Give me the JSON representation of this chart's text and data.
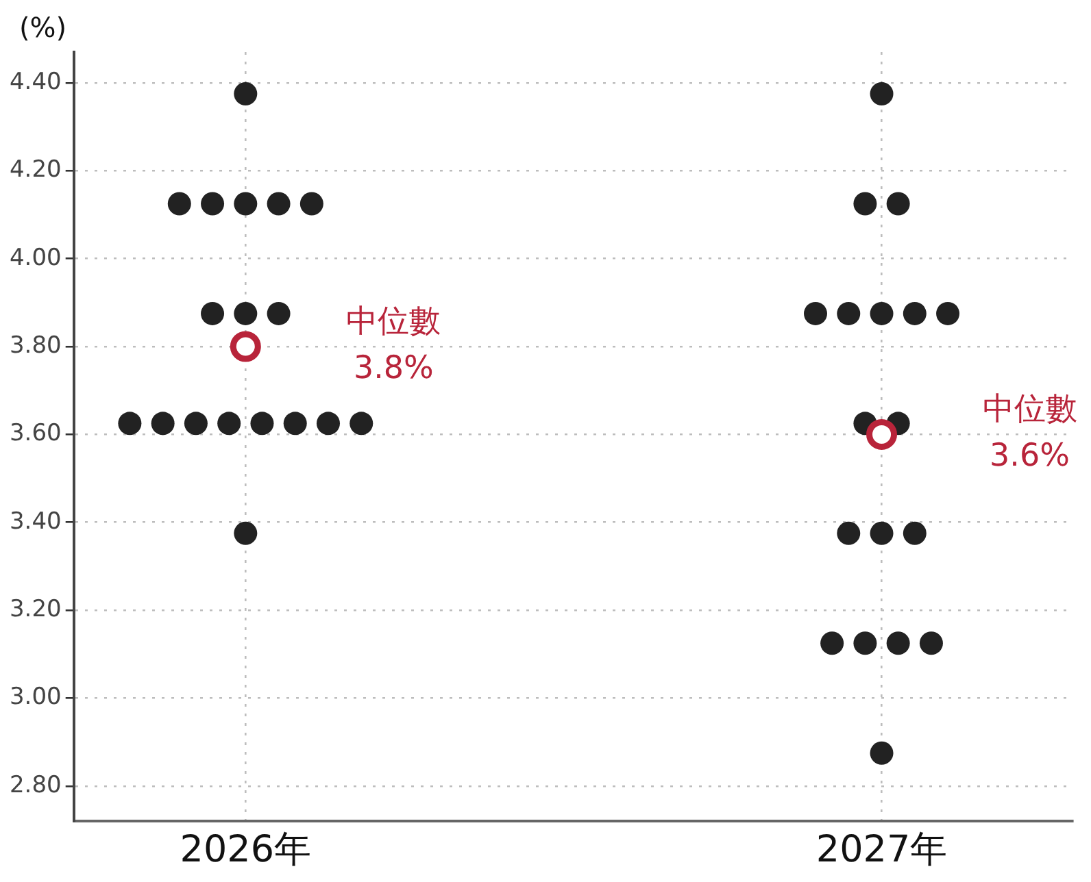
{
  "chart_data": {
    "type": "scatter",
    "ylabel": "(%)",
    "categories": [
      "2026年",
      "2027年"
    ],
    "series": [
      {
        "type": "scatter",
        "color": "#222222",
        "marker": "circle",
        "x": [
          "2026年",
          "2026年",
          "2026年",
          "2026年",
          "2026年",
          "2026年",
          "2026年",
          "2026年",
          "2026年",
          "2026年",
          "2026年",
          "2026年",
          "2026年",
          "2026年",
          "2026年",
          "2026年",
          "2026年",
          "2026年",
          "2027年",
          "2027年",
          "2027年",
          "2027年",
          "2027年",
          "2027年",
          "2027年",
          "2027年",
          "2027年",
          "2027年",
          "2027年",
          "2027年",
          "2027年",
          "2027年",
          "2027年",
          "2027年",
          "2027年",
          "2027年"
        ],
        "values": [
          4.375,
          4.125,
          4.125,
          4.125,
          4.125,
          4.125,
          3.875,
          3.875,
          3.875,
          3.625,
          3.625,
          3.625,
          3.625,
          3.625,
          3.625,
          3.625,
          3.625,
          3.375,
          4.375,
          4.125,
          4.125,
          3.875,
          3.875,
          3.875,
          3.875,
          3.875,
          3.625,
          3.625,
          3.375,
          3.375,
          3.375,
          3.125,
          3.125,
          3.125,
          3.125,
          2.875
        ]
      },
      {
        "type": "scatter",
        "color": "#b8243a",
        "marker": "circle",
        "x": [
          "2026年",
          "2027年"
        ],
        "values": [
          3.8,
          3.6
        ]
      }
    ],
    "ylim": [
      2.72,
      4.47
    ],
    "yticks": [
      {
        "value": 2.8,
        "label": "2.80"
      },
      {
        "value": 3.0,
        "label": "3.00"
      },
      {
        "value": 3.2,
        "label": "3.20"
      },
      {
        "value": 3.4,
        "label": "3.40"
      },
      {
        "value": 3.6,
        "label": "3.60"
      },
      {
        "value": 3.8,
        "label": "3.80"
      },
      {
        "value": 4.0,
        "label": "4.00"
      },
      {
        "value": 4.2,
        "label": "4.20"
      },
      {
        "value": 4.4,
        "label": "4.40"
      }
    ],
    "grid": true,
    "legend": false,
    "annotations": [
      "中位數\n3.8%",
      "中位數\n3.6%"
    ]
  }
}
